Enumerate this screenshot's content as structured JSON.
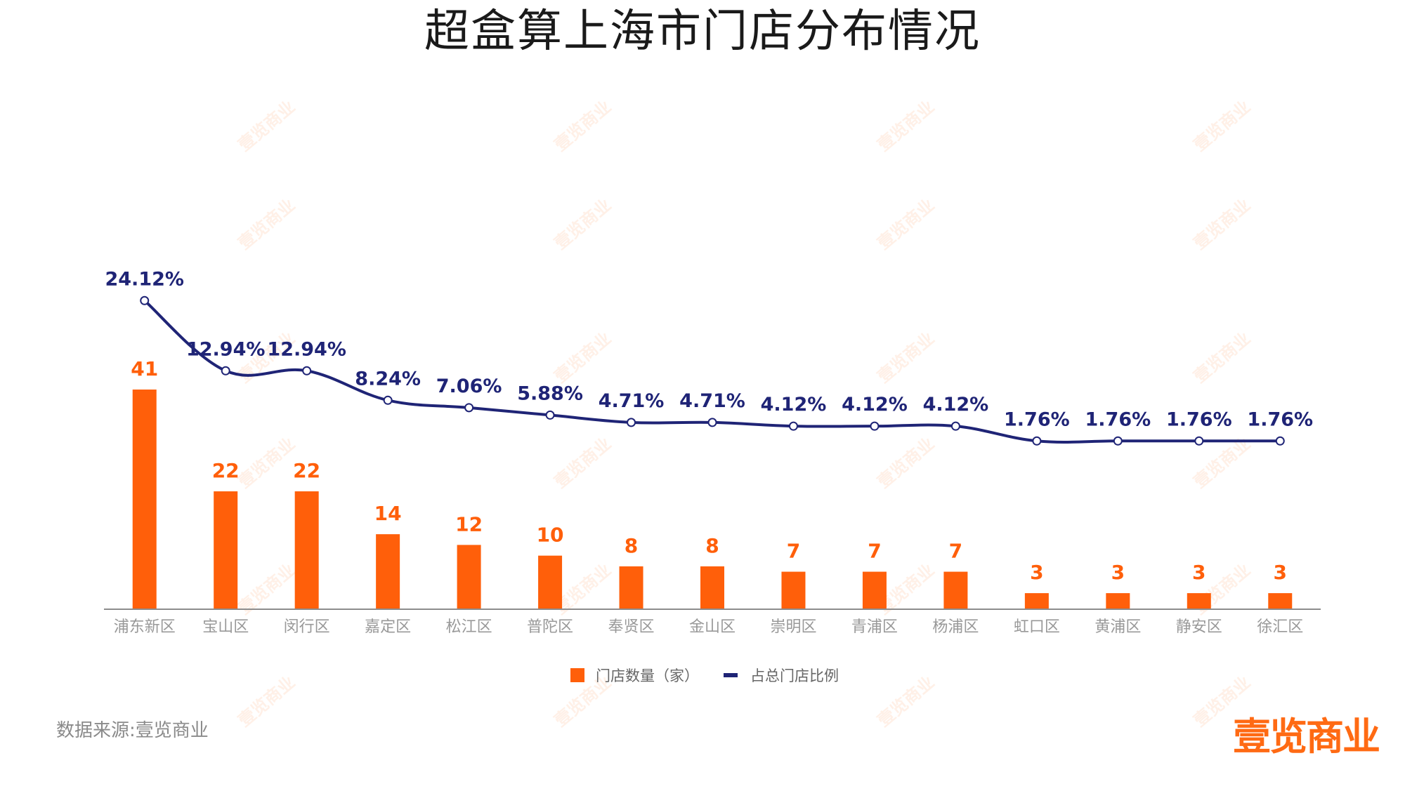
{
  "title": "超盒算上海市门店分布情况",
  "source": "数据来源:壹览商业",
  "logo": "壹览商业",
  "watermark_text": "壹览商业",
  "colors": {
    "bar": "#ff5f0a",
    "line": "#1f2476",
    "axis": "#999999",
    "label_bar": "#ff5f0a",
    "label_line": "#1f2476",
    "tick": "#999999"
  },
  "chart_data": {
    "type": "bar",
    "categories": [
      "浦东新区",
      "宝山区",
      "闵行区",
      "嘉定区",
      "松江区",
      "普陀区",
      "奉贤区",
      "金山区",
      "崇明区",
      "青浦区",
      "杨浦区",
      "虹口区",
      "黄浦区",
      "静安区",
      "徐汇区"
    ],
    "series": [
      {
        "name": "门店数量（家）",
        "type": "bar",
        "values": [
          41,
          22,
          22,
          14,
          12,
          10,
          8,
          8,
          7,
          7,
          7,
          3,
          3,
          3,
          3
        ],
        "labels": [
          "41",
          "22",
          "22",
          "14",
          "12",
          "10",
          "8",
          "8",
          "7",
          "7",
          "7",
          "3",
          "3",
          "3",
          "3"
        ]
      },
      {
        "name": "占总门店比例",
        "type": "line",
        "values": [
          24.12,
          12.94,
          12.94,
          8.24,
          7.06,
          5.88,
          4.71,
          4.71,
          4.12,
          4.12,
          4.12,
          1.76,
          1.76,
          1.76,
          1.76
        ],
        "labels": [
          "24.12%",
          "12.94%",
          "12.94%",
          "8.24%",
          "7.06%",
          "5.88%",
          "4.71%",
          "4.71%",
          "4.12%",
          "4.12%",
          "4.12%",
          "1.76%",
          "1.76%",
          "1.76%",
          "1.76%"
        ]
      }
    ],
    "legend_position": "bottom-center",
    "grid": false
  }
}
